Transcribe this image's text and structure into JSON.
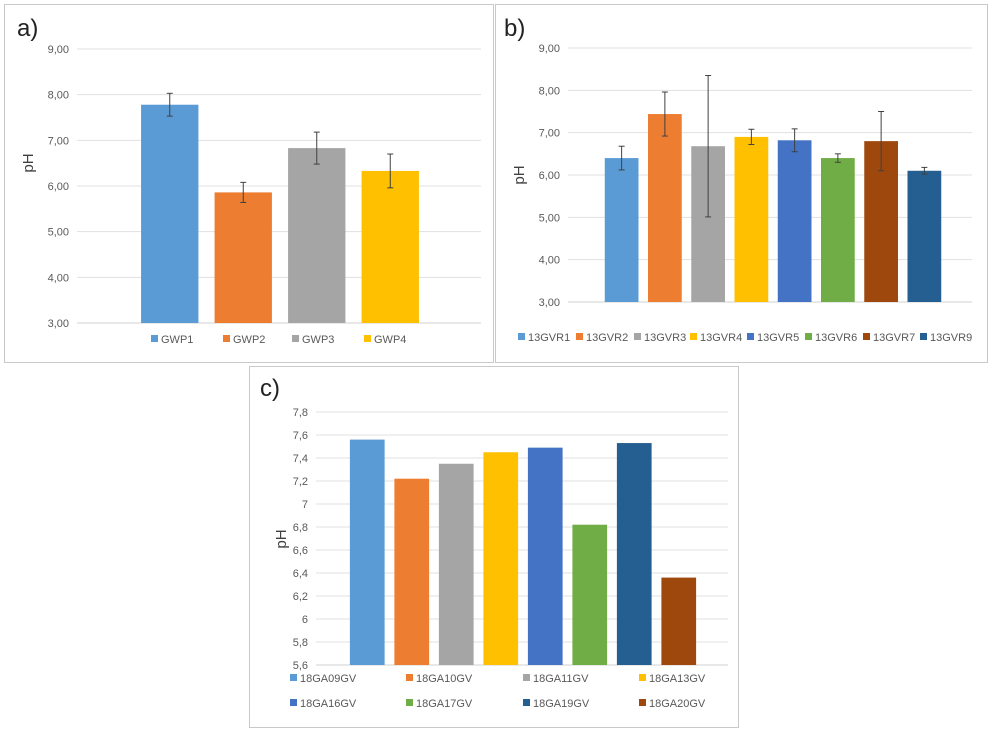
{
  "chart_data": [
    {
      "panel_label": "a)",
      "type": "bar",
      "title": "",
      "xlabel": "",
      "ylabel": "pH",
      "ylim": [
        3.0,
        9.0
      ],
      "yticks": [
        "3,00",
        "4,00",
        "5,00",
        "6,00",
        "7,00",
        "8,00",
        "9,00"
      ],
      "error_bars": true,
      "legend_position": "bottom",
      "series": [
        {
          "name": "GWP1",
          "value": 7.78,
          "error": 0.25,
          "color": "#5b9bd5"
        },
        {
          "name": "GWP2",
          "value": 5.86,
          "error": 0.22,
          "color": "#ed7d31"
        },
        {
          "name": "GWP3",
          "value": 6.83,
          "error": 0.35,
          "color": "#a5a5a5"
        },
        {
          "name": "GWP4",
          "value": 6.33,
          "error": 0.37,
          "color": "#ffc000"
        }
      ]
    },
    {
      "panel_label": "b)",
      "type": "bar",
      "title": "",
      "xlabel": "",
      "ylabel": "pH",
      "ylim": [
        3.0,
        9.0
      ],
      "yticks": [
        "3,00",
        "4,00",
        "5,00",
        "6,00",
        "7,00",
        "8,00",
        "9,00"
      ],
      "error_bars": true,
      "legend_position": "bottom",
      "series": [
        {
          "name": "13GVR1",
          "value": 6.4,
          "error": 0.28,
          "color": "#5b9bd5"
        },
        {
          "name": "13GVR2",
          "value": 7.44,
          "error": 0.52,
          "color": "#ed7d31"
        },
        {
          "name": "13GVR3",
          "value": 6.68,
          "error": 1.67,
          "color": "#a5a5a5"
        },
        {
          "name": "13GVR4",
          "value": 6.9,
          "error": 0.18,
          "color": "#ffc000"
        },
        {
          "name": "13GVR5",
          "value": 6.82,
          "error": 0.27,
          "color": "#4472c4"
        },
        {
          "name": "13GVR6",
          "value": 6.4,
          "error": 0.1,
          "color": "#70ad47"
        },
        {
          "name": "13GVR7",
          "value": 6.8,
          "error": 0.7,
          "color": "#9e480e"
        },
        {
          "name": "13GVR9",
          "value": 6.1,
          "error": 0.08,
          "color": "#255e91"
        }
      ]
    },
    {
      "panel_label": "c)",
      "type": "bar",
      "title": "",
      "xlabel": "",
      "ylabel": "pH",
      "ylim": [
        5.6,
        7.8
      ],
      "yticks": [
        "5,6",
        "5,8",
        "6",
        "6,2",
        "6,4",
        "6,6",
        "6,8",
        "7",
        "7,2",
        "7,4",
        "7,6",
        "7,8"
      ],
      "error_bars": false,
      "legend_position": "bottom",
      "series": [
        {
          "name": "18GA09GV",
          "value": 7.56,
          "color": "#5b9bd5"
        },
        {
          "name": "18GA10GV",
          "value": 7.22,
          "color": "#ed7d31"
        },
        {
          "name": "18GA11GV",
          "value": 7.35,
          "color": "#a5a5a5"
        },
        {
          "name": "18GA13GV",
          "value": 7.45,
          "color": "#ffc000"
        },
        {
          "name": "18GA16GV",
          "value": 7.49,
          "color": "#4472c4"
        },
        {
          "name": "18GA17GV",
          "value": 6.82,
          "color": "#70ad47"
        },
        {
          "name": "18GA19GV",
          "value": 7.53,
          "color": "#255e91"
        },
        {
          "name": "18GA20GV",
          "value": 6.36,
          "color": "#9e480e"
        }
      ]
    }
  ]
}
